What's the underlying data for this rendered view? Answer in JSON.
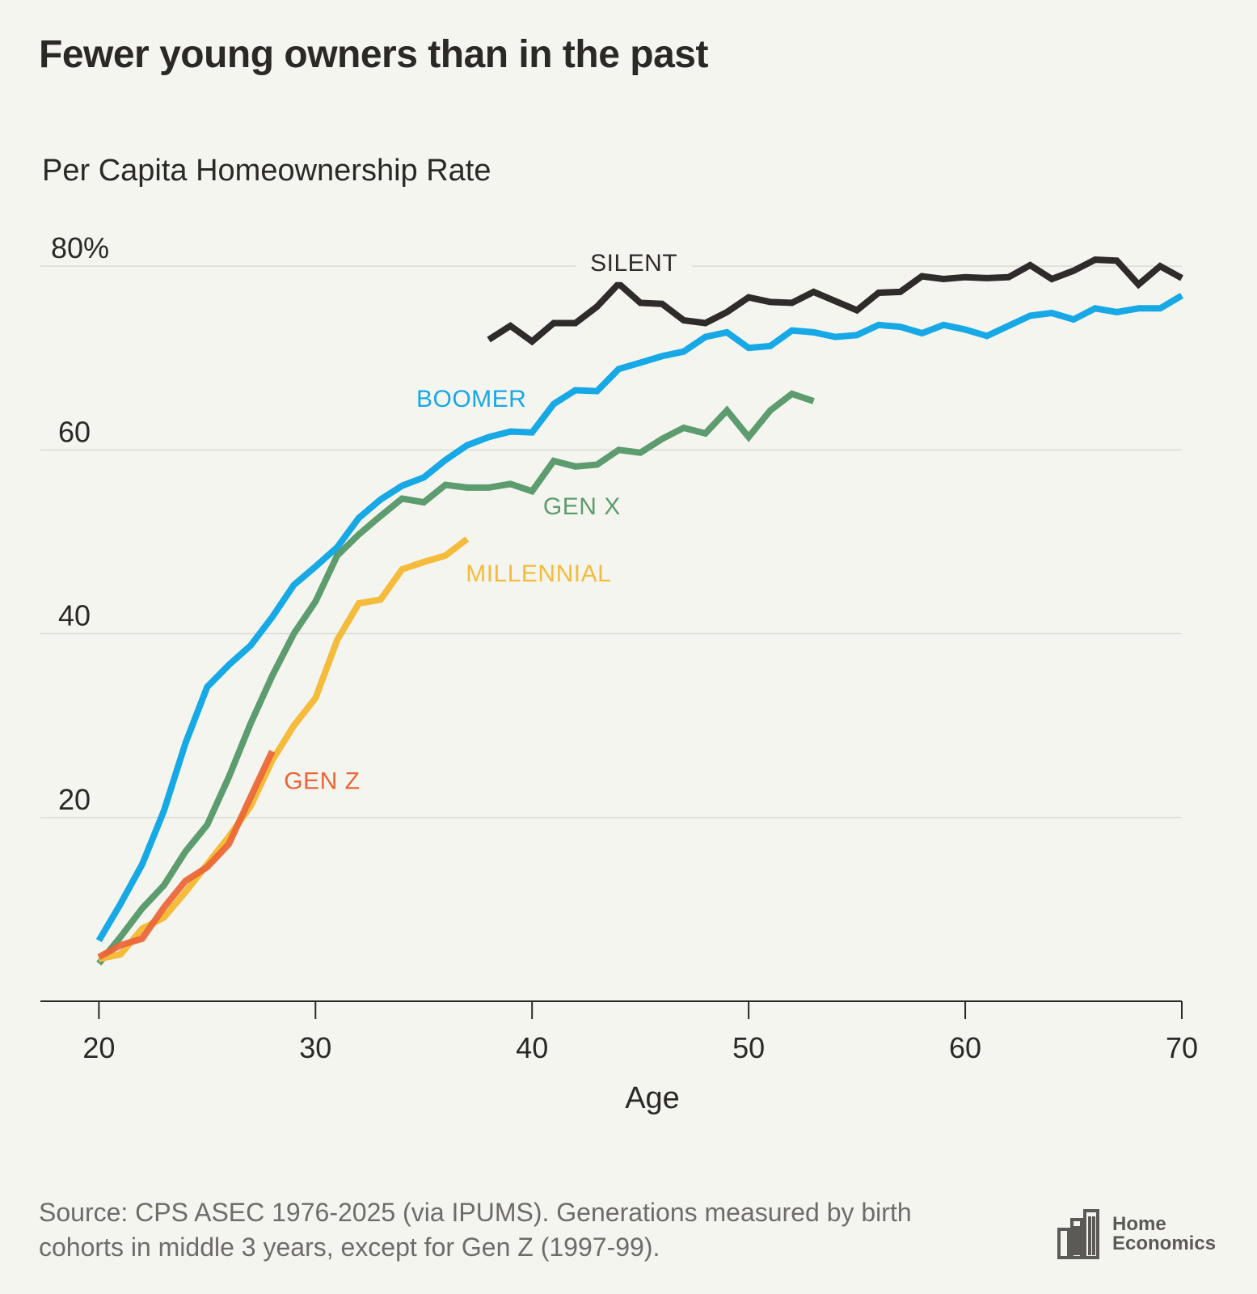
{
  "title": "Fewer young owners than in the past",
  "subtitle": "Per Capita Homeownership Rate",
  "source": "Source: CPS ASEC 1976-2025 (via IPUMS). Generations measured by birth cohorts in middle 3 years, except for Gen Z (1997-99).",
  "logo": {
    "line1": "Home",
    "line2": "Economics"
  },
  "chart_data": {
    "type": "line",
    "title": "Fewer young owners than in the past",
    "ylabel": "Per Capita Homeownership Rate",
    "xlabel": "Age",
    "xlim": [
      17.3,
      70
    ],
    "ylim": [
      0,
      83
    ],
    "x_ticks": [
      20,
      30,
      40,
      50,
      60,
      70
    ],
    "y_ticks": [
      20,
      40,
      60,
      80
    ],
    "y_tick_labels": [
      "20",
      "40",
      "60",
      "80%"
    ],
    "grid": "horizontal",
    "series": [
      {
        "name": "SILENT",
        "color": "#2e2b2a",
        "x": [
          38,
          39,
          40,
          41,
          42,
          43,
          44,
          45,
          46,
          47,
          48,
          49,
          50,
          51,
          52,
          53,
          54,
          55,
          56,
          57,
          58,
          59,
          60,
          61,
          62,
          63,
          64,
          65,
          66,
          67,
          68,
          69,
          70
        ],
        "values": [
          72.0,
          73.5,
          71.8,
          73.8,
          73.8,
          75.6,
          78.1,
          76.0,
          75.9,
          74.1,
          73.8,
          75.0,
          76.6,
          76.1,
          76.0,
          77.2,
          76.2,
          75.2,
          77.1,
          77.2,
          78.9,
          78.6,
          78.8,
          78.7,
          78.8,
          80.1,
          78.6,
          79.5,
          80.7,
          80.6,
          78.0,
          80.0,
          78.7
        ]
      },
      {
        "name": "BOOMER",
        "color": "#17a8e6",
        "x": [
          20,
          21,
          22,
          23,
          24,
          25,
          26,
          27,
          28,
          29,
          30,
          31,
          32,
          33,
          34,
          35,
          36,
          37,
          38,
          39,
          40,
          41,
          42,
          43,
          44,
          45,
          46,
          47,
          48,
          49,
          50,
          51,
          52,
          53,
          54,
          55,
          56,
          57,
          58,
          59,
          60,
          61,
          62,
          63,
          64,
          65,
          66,
          67,
          68,
          69,
          70
        ],
        "values": [
          6.6,
          10.6,
          14.9,
          20.7,
          28.1,
          34.2,
          36.6,
          38.7,
          41.8,
          45.3,
          47.3,
          49.4,
          52.6,
          54.6,
          56.1,
          57.0,
          58.9,
          60.5,
          61.4,
          62.0,
          61.9,
          65.0,
          66.5,
          66.4,
          68.8,
          69.5,
          70.2,
          70.7,
          72.3,
          72.8,
          71.1,
          71.3,
          73.0,
          72.8,
          72.3,
          72.5,
          73.6,
          73.4,
          72.7,
          73.6,
          73.1,
          72.4,
          73.5,
          74.6,
          74.9,
          74.2,
          75.4,
          75.0,
          75.4,
          75.4,
          76.8
        ]
      },
      {
        "name": "GEN X",
        "color": "#5d9c6e",
        "x": [
          20,
          21,
          22,
          23,
          24,
          25,
          26,
          27,
          28,
          29,
          30,
          31,
          32,
          33,
          34,
          35,
          36,
          37,
          38,
          39,
          40,
          41,
          42,
          43,
          44,
          45,
          46,
          47,
          48,
          49,
          50,
          51,
          52,
          53
        ],
        "values": [
          4.1,
          7.0,
          10.1,
          12.6,
          16.3,
          19.2,
          24.4,
          30.2,
          35.4,
          40.0,
          43.5,
          48.5,
          50.8,
          52.8,
          54.7,
          54.3,
          56.2,
          55.9,
          55.9,
          56.3,
          55.5,
          58.8,
          58.2,
          58.4,
          60.0,
          59.7,
          61.2,
          62.4,
          61.8,
          64.3,
          61.4,
          64.3,
          66.1,
          65.3
        ]
      },
      {
        "name": "MILLENNIAL",
        "color": "#f5bb3a",
        "x": [
          20,
          21,
          22,
          23,
          24,
          25,
          26,
          27,
          28,
          29,
          30,
          31,
          32,
          33,
          34,
          35,
          36,
          37
        ],
        "values": [
          4.6,
          5.1,
          7.9,
          9.1,
          11.9,
          14.9,
          17.9,
          21.2,
          26.2,
          30.0,
          33.0,
          39.3,
          43.3,
          43.7,
          47.0,
          47.8,
          48.5,
          50.3
        ]
      },
      {
        "name": "GEN Z",
        "color": "#ec6435",
        "x": [
          20,
          21,
          22,
          23,
          24,
          25,
          26,
          27,
          28
        ],
        "values": [
          4.8,
          6.1,
          6.8,
          10.2,
          13.1,
          14.6,
          17.1,
          22.2,
          27.2
        ]
      }
    ]
  }
}
